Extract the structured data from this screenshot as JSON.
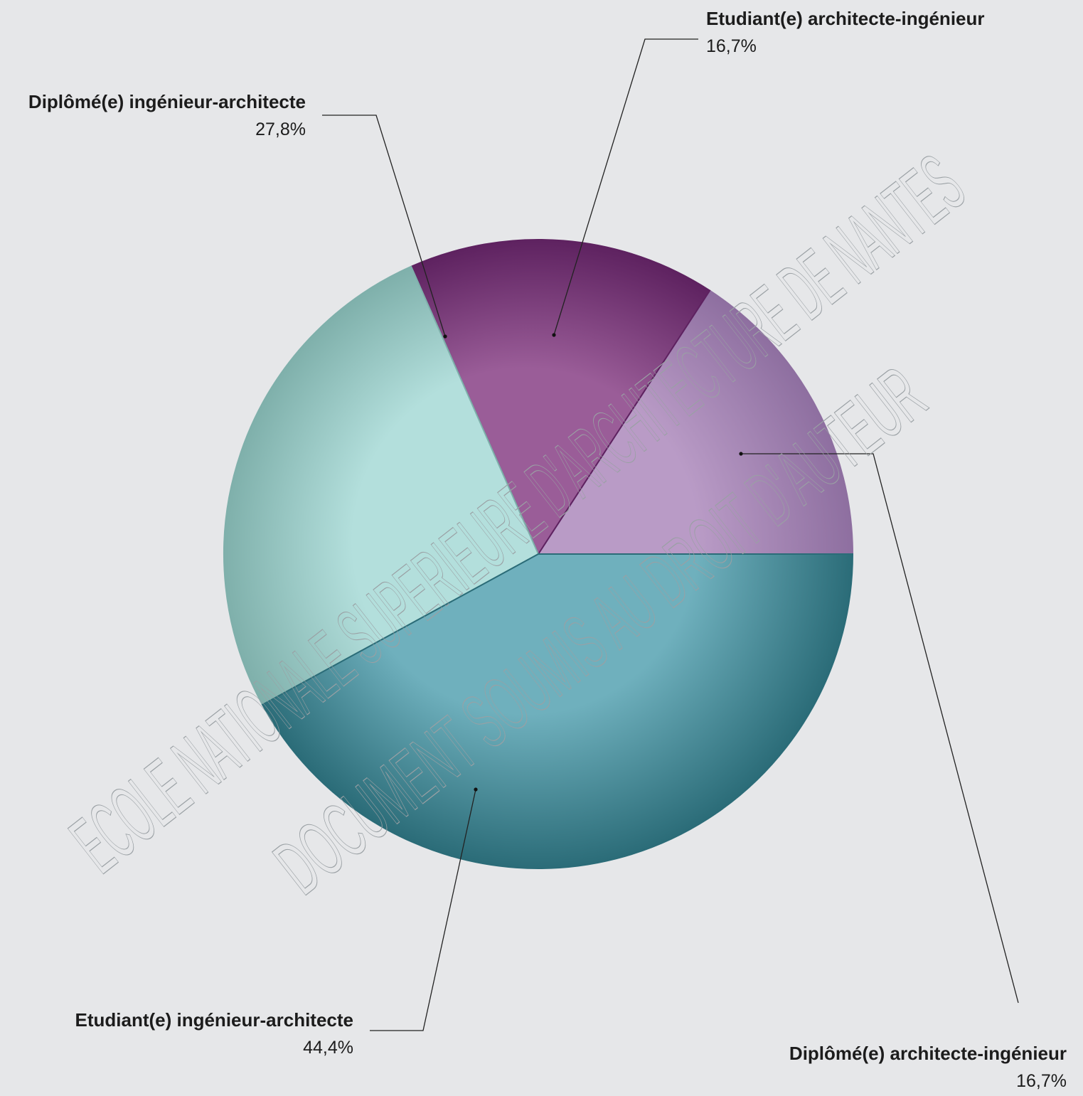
{
  "chart_data": {
    "type": "pie",
    "start_angle_deg": 0,
    "direction": "counterclockwise",
    "slices": [
      {
        "label": "Diplômé(e) architecte-ingénieur",
        "value": 16.7,
        "value_label": "16,7%",
        "color": "#b99bc6",
        "edge_color": "#8e6fa0"
      },
      {
        "label": "Etudiant(e) architecte-ingénieur",
        "value": 16.7,
        "value_label": "16,7%",
        "color": "#9a5d98",
        "edge_color": "#5e2260"
      },
      {
        "label": "Diplômé(e) ingénieur-architecte",
        "value": 27.8,
        "value_label": "27,8%",
        "color": "#b3dfdc",
        "edge_color": "#7fb0ab"
      },
      {
        "label": "Etudiant(e) ingénieur-architecte",
        "value": 44.4,
        "value_label": "44,4%",
        "color": "#6fb0bd",
        "edge_color": "#2b6c78"
      }
    ],
    "legend": "none"
  },
  "watermark": {
    "line1": "ECOLE NATIONALE SUPERIEURE D'ARCHITECTURE DE NANTES",
    "line2": "DOCUMENT SOUMIS AU DROIT D'AUTEUR"
  }
}
